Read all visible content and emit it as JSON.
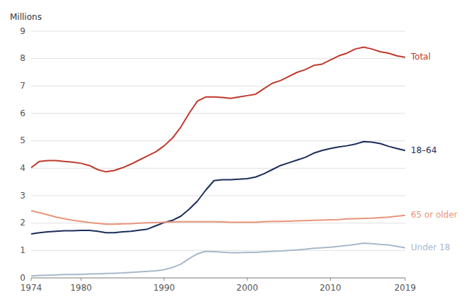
{
  "chart_data": {
    "type": "line",
    "y_label": "Millions",
    "x": [
      1974,
      1975,
      1976,
      1977,
      1978,
      1979,
      1980,
      1981,
      1982,
      1983,
      1984,
      1985,
      1986,
      1987,
      1988,
      1989,
      1990,
      1991,
      1992,
      1993,
      1994,
      1995,
      1996,
      1997,
      1998,
      1999,
      2000,
      2001,
      2002,
      2003,
      2004,
      2005,
      2006,
      2007,
      2008,
      2009,
      2010,
      2011,
      2012,
      2013,
      2014,
      2015,
      2016,
      2017,
      2018,
      2019
    ],
    "series": [
      {
        "name": "Total",
        "color": "#c0392b",
        "values": [
          4.02,
          4.25,
          4.28,
          4.28,
          4.25,
          4.22,
          4.18,
          4.1,
          3.95,
          3.87,
          3.92,
          4.02,
          4.15,
          4.3,
          4.45,
          4.6,
          4.82,
          5.1,
          5.5,
          6.0,
          6.45,
          6.6,
          6.6,
          6.58,
          6.55,
          6.6,
          6.65,
          6.7,
          6.9,
          7.1,
          7.2,
          7.35,
          7.5,
          7.6,
          7.75,
          7.8,
          7.95,
          8.1,
          8.2,
          8.35,
          8.42,
          8.35,
          8.25,
          8.2,
          8.1,
          8.05
        ]
      },
      {
        "name": "18–64",
        "color": "#1a2d5a",
        "values": [
          1.6,
          1.65,
          1.68,
          1.7,
          1.72,
          1.72,
          1.73,
          1.73,
          1.7,
          1.65,
          1.65,
          1.68,
          1.7,
          1.74,
          1.78,
          1.9,
          2.02,
          2.1,
          2.25,
          2.5,
          2.8,
          3.2,
          3.55,
          3.58,
          3.58,
          3.6,
          3.62,
          3.68,
          3.8,
          3.95,
          4.1,
          4.2,
          4.3,
          4.4,
          4.55,
          4.65,
          4.72,
          4.78,
          4.82,
          4.88,
          4.97,
          4.95,
          4.9,
          4.8,
          4.72,
          4.65
        ]
      },
      {
        "name": "65 or older",
        "color": "#e8957a",
        "values": [
          2.45,
          2.38,
          2.3,
          2.22,
          2.16,
          2.1,
          2.06,
          2.02,
          1.99,
          1.96,
          1.96,
          1.97,
          1.98,
          2.0,
          2.01,
          2.02,
          2.03,
          2.04,
          2.05,
          2.05,
          2.05,
          2.05,
          2.05,
          2.04,
          2.03,
          2.03,
          2.03,
          2.03,
          2.05,
          2.06,
          2.06,
          2.07,
          2.08,
          2.09,
          2.1,
          2.11,
          2.12,
          2.13,
          2.15,
          2.16,
          2.17,
          2.18,
          2.2,
          2.22,
          2.25,
          2.28
        ]
      },
      {
        "name": "Under 18",
        "color": "#a8b8cc",
        "values": [
          0.07,
          0.09,
          0.1,
          0.11,
          0.12,
          0.12,
          0.13,
          0.14,
          0.15,
          0.16,
          0.17,
          0.18,
          0.2,
          0.22,
          0.24,
          0.26,
          0.3,
          0.38,
          0.5,
          0.7,
          0.88,
          0.97,
          0.96,
          0.94,
          0.92,
          0.92,
          0.93,
          0.93,
          0.95,
          0.97,
          0.98,
          1.0,
          1.02,
          1.05,
          1.08,
          1.1,
          1.12,
          1.15,
          1.18,
          1.22,
          1.27,
          1.25,
          1.22,
          1.2,
          1.15,
          1.1
        ]
      }
    ],
    "xlim": [
      1974,
      2019
    ],
    "xticks": [
      1974,
      1980,
      1990,
      2000,
      2010,
      2019
    ],
    "ylim": [
      0,
      9
    ],
    "yticks": [
      0,
      1,
      2,
      3,
      4,
      5,
      6,
      7,
      8,
      9
    ],
    "grid": true
  }
}
